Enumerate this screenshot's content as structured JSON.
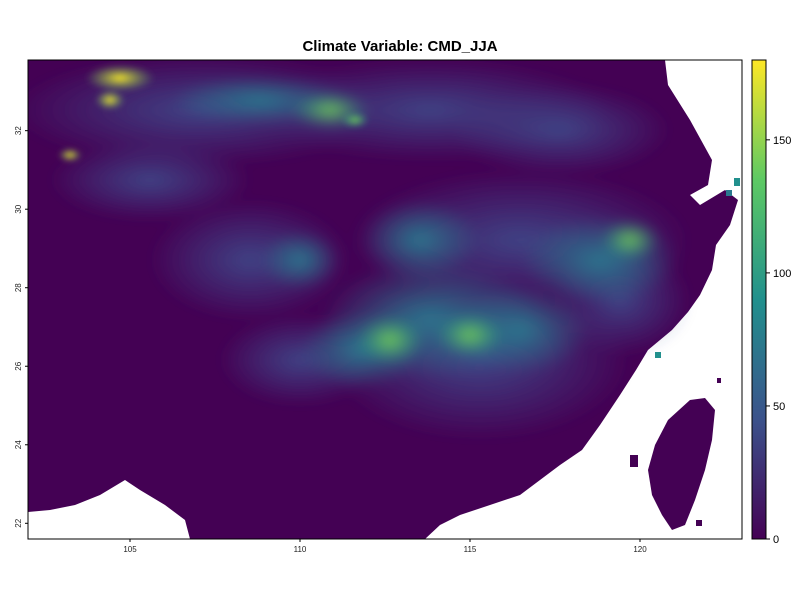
{
  "title": "Climate Variable: CMD_JJA",
  "map": {
    "x_ticks": [
      105,
      110,
      115,
      120
    ],
    "y_ticks": [
      22,
      24,
      26,
      28,
      30,
      32
    ],
    "lon_range": [
      102,
      123
    ],
    "lat_range": [
      21.6,
      33.8
    ]
  },
  "legend": {
    "ticks": [
      0,
      50,
      100,
      150
    ],
    "range": [
      0,
      180
    ],
    "palette": [
      "#440154",
      "#3b528b",
      "#21908d",
      "#5dc963",
      "#fde725"
    ]
  }
}
